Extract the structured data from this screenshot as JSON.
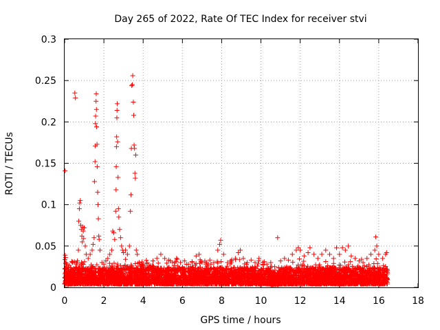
{
  "chart_data": {
    "type": "scatter",
    "title": "Day 265 of 2022, Rate Of TEC Index for receiver stvi",
    "xlabel": "GPS time / hours",
    "ylabel": "ROTI / TECUs",
    "xlim": [
      0,
      18
    ],
    "ylim": [
      0,
      0.3
    ],
    "x_ticks": [
      "0",
      "2",
      "4",
      "6",
      "8",
      "10",
      "12",
      "14",
      "16",
      "18"
    ],
    "y_ticks": [
      "0",
      "0.05",
      "0.1",
      "0.15",
      "0.2",
      "0.25",
      "0.3"
    ],
    "grid": true,
    "marker": "+",
    "series_color": "#ff0000",
    "series": [
      {
        "points": [
          [
            0.02,
            0.141
          ],
          [
            0.03,
            0.039
          ],
          [
            0.05,
            0.036
          ],
          [
            0.07,
            0.03
          ],
          [
            0.1,
            0.028
          ],
          [
            0.15,
            0.022
          ],
          [
            0.2,
            0.018
          ],
          [
            0.3,
            0.024
          ],
          [
            0.4,
            0.03
          ],
          [
            0.5,
            0.031
          ],
          [
            0.52,
            0.235
          ],
          [
            0.55,
            0.229
          ],
          [
            0.6,
            0.028
          ],
          [
            0.65,
            0.032
          ],
          [
            0.7,
            0.045
          ],
          [
            0.72,
            0.08
          ],
          [
            0.75,
            0.095
          ],
          [
            0.77,
            0.102
          ],
          [
            0.8,
            0.105
          ],
          [
            0.82,
            0.075
          ],
          [
            0.85,
            0.07
          ],
          [
            0.88,
            0.062
          ],
          [
            0.9,
            0.055
          ],
          [
            0.92,
            0.073
          ],
          [
            0.95,
            0.068
          ],
          [
            0.97,
            0.059
          ],
          [
            1.0,
            0.072
          ],
          [
            1.05,
            0.05
          ],
          [
            1.1,
            0.04
          ],
          [
            1.2,
            0.035
          ],
          [
            1.3,
            0.04
          ],
          [
            1.4,
            0.045
          ],
          [
            1.45,
            0.052
          ],
          [
            1.5,
            0.06
          ],
          [
            1.52,
            0.128
          ],
          [
            1.55,
            0.152
          ],
          [
            1.56,
            0.171
          ],
          [
            1.57,
            0.198
          ],
          [
            1.58,
            0.207
          ],
          [
            1.6,
            0.225
          ],
          [
            1.61,
            0.234
          ],
          [
            1.62,
            0.215
          ],
          [
            1.63,
            0.194
          ],
          [
            1.65,
            0.173
          ],
          [
            1.66,
            0.146
          ],
          [
            1.68,
            0.115
          ],
          [
            1.7,
            0.1
          ],
          [
            1.72,
            0.083
          ],
          [
            1.74,
            0.062
          ],
          [
            1.76,
            0.058
          ],
          [
            1.8,
            0.045
          ],
          [
            1.9,
            0.03
          ],
          [
            2.0,
            0.028
          ],
          [
            2.1,
            0.032
          ],
          [
            2.2,
            0.035
          ],
          [
            2.3,
            0.04
          ],
          [
            2.4,
            0.045
          ],
          [
            2.45,
            0.068
          ],
          [
            2.5,
            0.066
          ],
          [
            2.55,
            0.058
          ],
          [
            2.6,
            0.092
          ],
          [
            2.62,
            0.118
          ],
          [
            2.63,
            0.146
          ],
          [
            2.64,
            0.17
          ],
          [
            2.65,
            0.182
          ],
          [
            2.66,
            0.205
          ],
          [
            2.67,
            0.214
          ],
          [
            2.68,
            0.222
          ],
          [
            2.7,
            0.176
          ],
          [
            2.72,
            0.133
          ],
          [
            2.74,
            0.095
          ],
          [
            2.76,
            0.085
          ],
          [
            2.8,
            0.07
          ],
          [
            2.85,
            0.06
          ],
          [
            2.9,
            0.05
          ],
          [
            2.95,
            0.045
          ],
          [
            3.0,
            0.042
          ],
          [
            3.1,
            0.045
          ],
          [
            3.2,
            0.04
          ],
          [
            3.3,
            0.05
          ],
          [
            3.35,
            0.092
          ],
          [
            3.38,
            0.112
          ],
          [
            3.4,
            0.168
          ],
          [
            3.42,
            0.244
          ],
          [
            3.45,
            0.245
          ],
          [
            3.47,
            0.256
          ],
          [
            3.5,
            0.224
          ],
          [
            3.52,
            0.208
          ],
          [
            3.54,
            0.172
          ],
          [
            3.56,
            0.168
          ],
          [
            3.58,
            0.138
          ],
          [
            3.6,
            0.132
          ],
          [
            3.62,
            0.16
          ],
          [
            3.65,
            0.045
          ],
          [
            3.7,
            0.04
          ],
          [
            3.8,
            0.03
          ],
          [
            3.9,
            0.028
          ],
          [
            4.0,
            0.025
          ],
          [
            4.2,
            0.03
          ],
          [
            4.5,
            0.032
          ],
          [
            4.7,
            0.035
          ],
          [
            4.9,
            0.04
          ],
          [
            5.1,
            0.035
          ],
          [
            5.3,
            0.033
          ],
          [
            5.5,
            0.03
          ],
          [
            5.7,
            0.035
          ],
          [
            5.9,
            0.03
          ],
          [
            6.1,
            0.032
          ],
          [
            6.3,
            0.028
          ],
          [
            6.5,
            0.03
          ],
          [
            6.7,
            0.038
          ],
          [
            6.85,
            0.04
          ],
          [
            7.0,
            0.03
          ],
          [
            7.2,
            0.028
          ],
          [
            7.4,
            0.033
          ],
          [
            7.6,
            0.03
          ],
          [
            7.8,
            0.045
          ],
          [
            7.9,
            0.052
          ],
          [
            7.95,
            0.057
          ],
          [
            8.1,
            0.04
          ],
          [
            8.3,
            0.03
          ],
          [
            8.5,
            0.032
          ],
          [
            8.7,
            0.035
          ],
          [
            8.85,
            0.042
          ],
          [
            8.95,
            0.045
          ],
          [
            9.1,
            0.035
          ],
          [
            9.3,
            0.03
          ],
          [
            9.5,
            0.033
          ],
          [
            9.7,
            0.03
          ],
          [
            9.9,
            0.035
          ],
          [
            10.1,
            0.03
          ],
          [
            10.3,
            0.028
          ],
          [
            10.5,
            0.03
          ],
          [
            10.7,
            0.025
          ],
          [
            10.85,
            0.06
          ],
          [
            11.0,
            0.032
          ],
          [
            11.2,
            0.035
          ],
          [
            11.4,
            0.033
          ],
          [
            11.6,
            0.04
          ],
          [
            11.8,
            0.045
          ],
          [
            11.9,
            0.048
          ],
          [
            12.0,
            0.045
          ],
          [
            12.2,
            0.038
          ],
          [
            12.4,
            0.042
          ],
          [
            12.5,
            0.048
          ],
          [
            12.7,
            0.04
          ],
          [
            12.9,
            0.035
          ],
          [
            13.1,
            0.04
          ],
          [
            13.3,
            0.045
          ],
          [
            13.5,
            0.04
          ],
          [
            13.7,
            0.035
          ],
          [
            13.85,
            0.048
          ],
          [
            14.0,
            0.04
          ],
          [
            14.15,
            0.048
          ],
          [
            14.3,
            0.045
          ],
          [
            14.45,
            0.05
          ],
          [
            14.6,
            0.038
          ],
          [
            14.8,
            0.035
          ],
          [
            15.0,
            0.032
          ],
          [
            15.2,
            0.03
          ],
          [
            15.4,
            0.035
          ],
          [
            15.6,
            0.04
          ],
          [
            15.8,
            0.045
          ],
          [
            15.85,
            0.061
          ],
          [
            15.9,
            0.05
          ],
          [
            16.0,
            0.04
          ],
          [
            16.2,
            0.035
          ],
          [
            16.35,
            0.04
          ],
          [
            16.4,
            0.042
          ]
        ]
      }
    ]
  }
}
